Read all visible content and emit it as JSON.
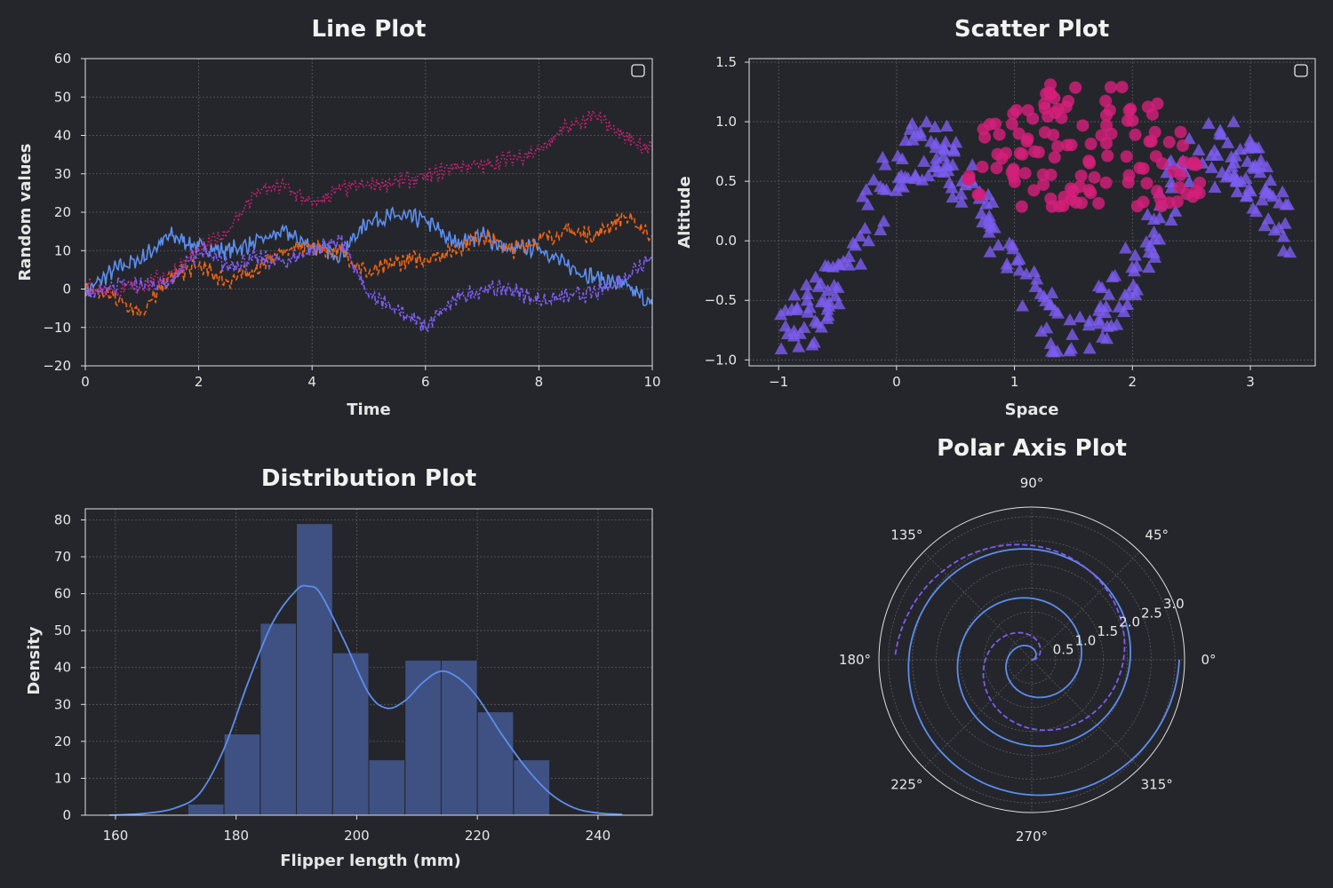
{
  "colors": {
    "background": "#25262b",
    "blue": "#5b8ef0",
    "orange": "#f06414",
    "purple": "#7c5cf0",
    "magenta": "#d4207a",
    "hist_fill": "#3f5182"
  },
  "chart_data": [
    {
      "id": "line",
      "type": "line",
      "title": "Line Plot",
      "xlabel": "Time",
      "ylabel": "Random values",
      "xlim": [
        0,
        10
      ],
      "ylim": [
        -20,
        60
      ],
      "xticks": [
        0,
        2,
        4,
        6,
        8,
        10
      ],
      "yticks": [
        -20,
        -10,
        0,
        10,
        20,
        30,
        40,
        50,
        60
      ],
      "grid": true,
      "legend": "empty box, top-right",
      "x": [
        0,
        0.5,
        1,
        1.5,
        2,
        2.5,
        3,
        3.5,
        4,
        4.5,
        5,
        5.5,
        6,
        6.5,
        7,
        7.5,
        8,
        8.5,
        9,
        9.5,
        10
      ],
      "series": [
        {
          "style": "solid",
          "color": "#5b8ef0",
          "values": [
            -1,
            5,
            8,
            14,
            11,
            10,
            12,
            15,
            11,
            9,
            18,
            19,
            18,
            12,
            14,
            10,
            11,
            6,
            3,
            1,
            -4
          ]
        },
        {
          "style": "dashed",
          "color": "#f06414",
          "values": [
            0,
            -2,
            -6,
            3,
            6,
            2,
            5,
            10,
            11,
            10,
            4,
            7,
            8,
            10,
            14,
            10,
            13,
            15,
            14,
            19,
            14
          ]
        },
        {
          "style": "dashdot",
          "color": "#7c5cf0",
          "values": [
            -2,
            1,
            1,
            2,
            10,
            6,
            8,
            7,
            10,
            13,
            -2,
            -5,
            -10,
            -3,
            0,
            0,
            -3,
            -2,
            -1,
            3,
            9
          ]
        },
        {
          "style": "dotted",
          "color": "#d4207a",
          "values": [
            1,
            -1,
            1,
            4,
            10,
            15,
            25,
            27,
            22,
            26,
            27,
            28,
            29,
            32,
            32,
            34,
            36,
            42,
            45,
            40,
            36
          ]
        }
      ]
    },
    {
      "id": "scatter",
      "type": "scatter",
      "title": "Scatter Plot",
      "xlabel": "Space",
      "ylabel": "Altitude",
      "xlim": [
        -1.25,
        3.55
      ],
      "ylim": [
        -1.05,
        1.53
      ],
      "xticks": [
        -1,
        0,
        1,
        2,
        3
      ],
      "yticks": [
        -1.0,
        -0.5,
        0.0,
        0.5,
        1.0,
        1.5
      ],
      "ytick_labels": [
        "−1.0",
        "−0.5",
        "0.0",
        "0.5",
        "1.0",
        "1.5"
      ],
      "xtick_labels": [
        "−1",
        "0",
        "1",
        "2",
        "3"
      ],
      "grid": true,
      "legend": "empty box, top-right",
      "series": [
        {
          "marker": "triangle",
          "color": "#7c5cf0",
          "description_of_shape": "sin(2x) band with noise, x from -1 to 3.3"
        },
        {
          "marker": "circle",
          "color": "#d4207a",
          "description_of_shape": "cap over x 0.6 to 2.6, y 0.3 to 1.4"
        }
      ]
    },
    {
      "id": "hist",
      "type": "bar",
      "title": "Distribution Plot",
      "xlabel": "Flipper length (mm)",
      "ylabel": "Density",
      "xlim": [
        155,
        249
      ],
      "ylim": [
        0,
        83
      ],
      "xticks": [
        160,
        180,
        200,
        220,
        240
      ],
      "yticks": [
        0,
        10,
        20,
        30,
        40,
        50,
        60,
        70,
        80
      ],
      "grid": true,
      "bin_edges": [
        172,
        178,
        184,
        190,
        196,
        202,
        208,
        214,
        220,
        226,
        232
      ],
      "values": [
        3,
        22,
        52,
        79,
        44,
        15,
        42,
        42,
        28,
        15
      ],
      "kde": {
        "x": [
          159,
          165,
          170,
          174,
          178,
          182,
          186,
          190,
          192,
          194,
          198,
          202,
          205,
          208,
          211,
          214,
          217,
          220,
          224,
          228,
          232,
          236,
          240,
          244
        ],
        "y": [
          0,
          0.5,
          2,
          6,
          18,
          36,
          52,
          61,
          62,
          60,
          47,
          33,
          29,
          31,
          36,
          39,
          37,
          32,
          22,
          13,
          6,
          2,
          0.6,
          0.2
        ]
      }
    },
    {
      "id": "polar",
      "type": "line",
      "title": "Polar Axis Plot",
      "projection": "polar",
      "rlim": [
        0,
        3.2
      ],
      "rticks": [
        0.5,
        1.0,
        1.5,
        2.0,
        2.5,
        3.0
      ],
      "rtick_labels": [
        "0.5",
        "1.0",
        "1.5",
        "2.0",
        "2.5",
        "3.0"
      ],
      "angle_labels": [
        "0°",
        "45°",
        "90°",
        "135°",
        "180°",
        "225°",
        "270°",
        "315°"
      ],
      "grid": true,
      "series": [
        {
          "style": "solid",
          "color": "#5b8ef0",
          "equation": "r = theta / (2*pi), theta 0..6*pi"
        },
        {
          "style": "dashed",
          "color": "#7c5cf0",
          "equation": "r = theta / (2*pi) * 1.05, theta 0..3*pi shifted"
        }
      ]
    }
  ]
}
